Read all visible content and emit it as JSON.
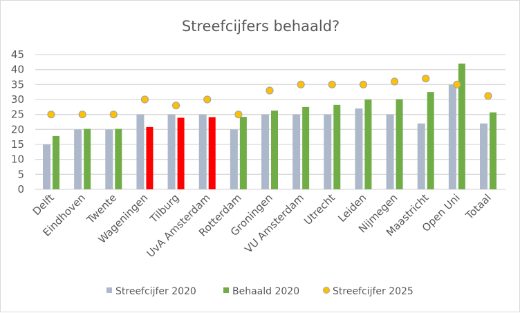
{
  "chart_data": {
    "type": "bar",
    "title": "Streefcijfers behaald?",
    "xlabel": "",
    "ylabel": "",
    "ylim": [
      0,
      45
    ],
    "yticks": [
      0,
      5,
      10,
      15,
      20,
      25,
      30,
      35,
      40,
      45
    ],
    "grid": true,
    "legend_position": "bottom",
    "categories": [
      "Delft",
      "Eindhoven",
      "Twente",
      "Wageningen",
      "Tilburg",
      "UvA Amsterdam",
      "Rotterdam",
      "Groningen",
      "VU Amsterdam",
      "Utrecht",
      "Leiden",
      "Nijmegen",
      "Maastricht",
      "Open Uni",
      "Totaal"
    ],
    "series": [
      {
        "name": "Streefcijfer 2020",
        "kind": "bar",
        "color": "#adb9ca",
        "values": [
          15,
          20,
          20,
          25,
          25,
          25,
          20,
          25,
          25,
          25,
          27,
          25,
          22,
          35,
          22
        ]
      },
      {
        "name": "Behaald 2020",
        "kind": "bar",
        "color": "#70ad47",
        "below_target_color": "#ff0000",
        "values": [
          17.8,
          20.2,
          20.2,
          20.8,
          23.9,
          24.1,
          24.2,
          26.3,
          27.5,
          28.2,
          30,
          30.1,
          32.5,
          42,
          25.7
        ]
      },
      {
        "name": "Streefcijfer 2025",
        "kind": "marker",
        "color": "#ffc000",
        "values": [
          25,
          25,
          25,
          30,
          28,
          30,
          25,
          33,
          35,
          35,
          35,
          36,
          37,
          35,
          31.2
        ]
      }
    ]
  }
}
